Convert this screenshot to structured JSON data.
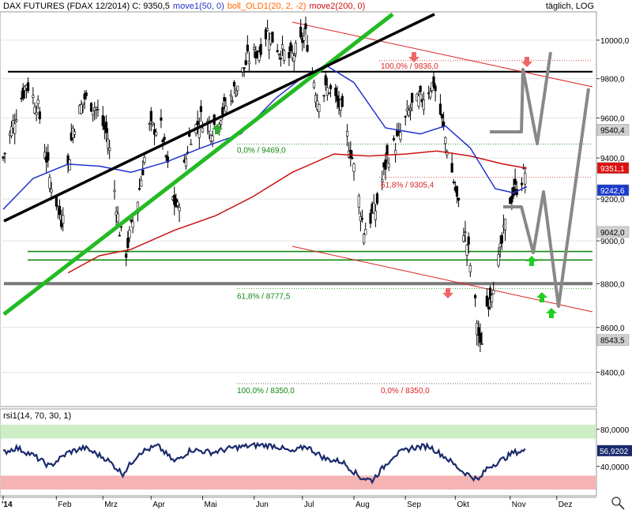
{
  "header": {
    "title": "DAX FUTURES (FDAX 12/2014) C: 9350,5",
    "ind_ma50": "move1(50, 0)",
    "ind_boll": "boll_OLD1(20, 2, -2)",
    "ind_ma200": "move2(200, 0)",
    "period": "täglich, LOG"
  },
  "colors": {
    "ma50": "#2233cc",
    "ma200": "#cc1111",
    "trend_green": "#22bb22",
    "trend_black": "#000000",
    "fib_red": "#dd2222",
    "fib_green": "#118811",
    "forecast": "#888888",
    "rsi_line": "#1a2a6c",
    "rsi_over": "#cdeec4",
    "rsi_under": "#f5b3b3"
  },
  "chart_data": [
    {
      "type": "line",
      "title": "DAX FUTURES (FDAX 12/2014) C: 9350,5",
      "scale": "log",
      "ylim": [
        8250,
        10150
      ],
      "y_ticks": [
        "10000,0",
        "9800,0",
        "9600,0",
        "9400,0",
        "9200,0",
        "9000,0",
        "8800,0",
        "8600,0",
        "8400,0"
      ],
      "x_ticks": [
        "'14",
        "Feb",
        "Mrz",
        "Apr",
        "Mai",
        "Jun",
        "Jul",
        "Aug",
        "Sep",
        "Okt",
        "Nov",
        "Dez"
      ],
      "x_values": [
        "2014-01-02",
        "2014-02-03",
        "2014-03-03",
        "2014-04-01",
        "2014-05-02",
        "2014-06-02",
        "2014-07-01",
        "2014-08-01",
        "2014-09-01",
        "2014-10-01",
        "2014-11-03",
        "2014-12-01"
      ],
      "series": [
        {
          "name": "",
          "values": [
            [
              "2014-01-02",
              9400
            ],
            [
              "2014-01-09",
              9600
            ],
            [
              "2014-01-16",
              9780
            ],
            [
              "2014-01-23",
              9650
            ],
            [
              "2014-01-30",
              9300
            ],
            [
              "2014-02-06",
              9100
            ],
            [
              "2014-02-13",
              9550
            ],
            [
              "2014-02-20",
              9700
            ],
            [
              "2014-02-27",
              9650
            ],
            [
              "2014-03-06",
              9500
            ],
            [
              "2014-03-13",
              9050
            ],
            [
              "2014-03-17",
              8950
            ],
            [
              "2014-03-24",
              9200
            ],
            [
              "2014-03-31",
              9550
            ],
            [
              "2014-04-07",
              9550
            ],
            [
              "2014-04-14",
              9200
            ],
            [
              "2014-04-17",
              9150
            ],
            [
              "2014-04-24",
              9500
            ],
            [
              "2014-05-01",
              9600
            ],
            [
              "2014-05-08",
              9550
            ],
            [
              "2014-05-15",
              9650
            ],
            [
              "2014-05-22",
              9750
            ],
            [
              "2014-05-29",
              9900
            ],
            [
              "2014-06-05",
              9950
            ],
            [
              "2014-06-10",
              10050
            ],
            [
              "2014-06-17",
              9950
            ],
            [
              "2014-06-24",
              9900
            ],
            [
              "2014-07-03",
              10030
            ],
            [
              "2014-07-10",
              9700
            ],
            [
              "2014-07-17",
              9750
            ],
            [
              "2014-07-24",
              9650
            ],
            [
              "2014-07-31",
              9400
            ],
            [
              "2014-08-07",
              9050
            ],
            [
              "2014-08-14",
              9150
            ],
            [
              "2014-08-21",
              9400
            ],
            [
              "2014-08-28",
              9500
            ],
            [
              "2014-09-04",
              9650
            ],
            [
              "2014-09-11",
              9700
            ],
            [
              "2014-09-18",
              9780
            ],
            [
              "2014-09-25",
              9500
            ],
            [
              "2014-10-02",
              9200
            ],
            [
              "2014-10-09",
              8950
            ],
            [
              "2014-10-13",
              8700
            ],
            [
              "2014-10-16",
              8500
            ],
            [
              "2014-10-20",
              8700
            ],
            [
              "2014-10-27",
              8900
            ],
            [
              "2014-11-03",
              9200
            ],
            [
              "2014-11-10",
              9300
            ],
            [
              "2014-11-13",
              9350
            ]
          ]
        },
        {
          "name": "move1(50, 0)",
          "values": [
            [
              "2014-01-02",
              9150
            ],
            [
              "2014-01-20",
              9300
            ],
            [
              "2014-02-10",
              9370
            ],
            [
              "2014-03-01",
              9360
            ],
            [
              "2014-03-20",
              9330
            ],
            [
              "2014-04-10",
              9380
            ],
            [
              "2014-05-01",
              9450
            ],
            [
              "2014-05-25",
              9520
            ],
            [
              "2014-06-15",
              9700
            ],
            [
              "2014-06-30",
              9800
            ],
            [
              "2014-07-15",
              9870
            ],
            [
              "2014-08-01",
              9780
            ],
            [
              "2014-08-20",
              9550
            ],
            [
              "2014-09-10",
              9520
            ],
            [
              "2014-09-25",
              9560
            ],
            [
              "2014-10-10",
              9450
            ],
            [
              "2014-10-25",
              9250
            ],
            [
              "2014-11-05",
              9230
            ],
            [
              "2014-11-13",
              9260
            ]
          ]
        },
        {
          "name": "move2(200, 0)",
          "values": [
            [
              "2014-02-10",
              8850
            ],
            [
              "2014-03-01",
              8930
            ],
            [
              "2014-03-20",
              8960
            ],
            [
              "2014-04-15",
              9050
            ],
            [
              "2014-05-10",
              9120
            ],
            [
              "2014-06-01",
              9210
            ],
            [
              "2014-06-25",
              9330
            ],
            [
              "2014-07-20",
              9420
            ],
            [
              "2014-08-10",
              9410
            ],
            [
              "2014-09-01",
              9420
            ],
            [
              "2014-09-20",
              9435
            ],
            [
              "2014-10-10",
              9410
            ],
            [
              "2014-10-30",
              9370
            ],
            [
              "2014-11-13",
              9350
            ]
          ]
        }
      ],
      "annotations": [
        "100,0% / 9836,0",
        "0,0% / 9469,0",
        "61,8% / 9305,4",
        "61,8% / 8777,5",
        "100,0% / 8350,0",
        "0,0% / 8350,0"
      ],
      "price_labels": [
        {
          "text": "9540,4",
          "value": 9540.4,
          "color": "#d0d0d0",
          "fg": "#000000"
        },
        {
          "text": "9351,1",
          "value": 9351.1,
          "color": "#dd1111",
          "fg": "#ffffff"
        },
        {
          "text": "9242,6",
          "value": 9242.6,
          "color": "#1a3acc",
          "fg": "#ffffff"
        },
        {
          "text": "9042,0",
          "value": 9042.0,
          "color": "#d0d0d0",
          "fg": "#000000"
        },
        {
          "text": "8543,5",
          "value": 8543.5,
          "color": "#d0d0d0",
          "fg": "#000000"
        }
      ],
      "horizontal_levels": [
        9836,
        8950,
        8910,
        8800,
        9469,
        9305.4,
        8777.5,
        8350
      ],
      "legend": "top-left"
    },
    {
      "type": "line",
      "title": "rsi1(14, 70, 30, 1)",
      "ylim": [
        10,
        90
      ],
      "y_ticks": [
        "80,0000",
        "40,0000"
      ],
      "bands": {
        "overbought": 70,
        "oversold": 30
      },
      "current": "56,9202",
      "series": [
        {
          "name": "rsi1(14, 70, 30, 1)",
          "values": [
            [
              "2014-01-02",
              55
            ],
            [
              "2014-01-10",
              60
            ],
            [
              "2014-01-20",
              52
            ],
            [
              "2014-01-30",
              40
            ],
            [
              "2014-02-10",
              55
            ],
            [
              "2014-02-20",
              60
            ],
            [
              "2014-03-05",
              48
            ],
            [
              "2014-03-15",
              32
            ],
            [
              "2014-03-25",
              55
            ],
            [
              "2014-04-05",
              62
            ],
            [
              "2014-04-15",
              45
            ],
            [
              "2014-04-25",
              58
            ],
            [
              "2014-05-08",
              55
            ],
            [
              "2014-05-20",
              60
            ],
            [
              "2014-06-05",
              63
            ],
            [
              "2014-06-15",
              62
            ],
            [
              "2014-06-25",
              55
            ],
            [
              "2014-07-03",
              62
            ],
            [
              "2014-07-15",
              48
            ],
            [
              "2014-07-25",
              45
            ],
            [
              "2014-08-05",
              28
            ],
            [
              "2014-08-12",
              25
            ],
            [
              "2014-08-25",
              52
            ],
            [
              "2014-09-05",
              60
            ],
            [
              "2014-09-15",
              62
            ],
            [
              "2014-09-25",
              50
            ],
            [
              "2014-10-05",
              35
            ],
            [
              "2014-10-15",
              25
            ],
            [
              "2014-10-20",
              38
            ],
            [
              "2014-10-30",
              48
            ],
            [
              "2014-11-05",
              55
            ],
            [
              "2014-11-13",
              57
            ]
          ]
        }
      ]
    }
  ]
}
